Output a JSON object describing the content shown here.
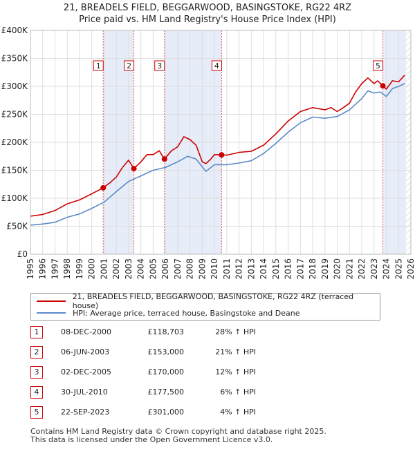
{
  "header": {
    "title_line1": "21, BREADELS FIELD, BEGGARWOOD, BASINGSTOKE, RG22 4RZ",
    "title_line2": "Price paid vs. HM Land Registry's House Price Index (HPI)"
  },
  "chart_data": {
    "type": "line",
    "title": "21, BREADELS FIELD, BEGGARWOOD, BASINGSTOKE, RG22 4RZ — Price paid vs. HM Land Registry's House Price Index (HPI)",
    "xlabel": "",
    "ylabel": "",
    "xlim": [
      1995,
      2026
    ],
    "ylim": [
      0,
      400000
    ],
    "y_ticks": [
      0,
      50000,
      100000,
      150000,
      200000,
      250000,
      300000,
      350000,
      400000
    ],
    "y_tick_labels": [
      "£0",
      "£50K",
      "£100K",
      "£150K",
      "£200K",
      "£250K",
      "£300K",
      "£350K",
      "£400K"
    ],
    "x_ticks": [
      "1995",
      "1996",
      "1997",
      "1998",
      "1999",
      "2000",
      "2001",
      "2002",
      "2003",
      "2004",
      "2005",
      "2006",
      "2007",
      "2008",
      "2009",
      "2010",
      "2011",
      "2012",
      "2013",
      "2014",
      "2015",
      "2016",
      "2017",
      "2018",
      "2019",
      "2020",
      "2021",
      "2022",
      "2023",
      "2024",
      "2025",
      "2026"
    ],
    "grid": true,
    "shaded_bands": [
      [
        2000.93,
        2003.43
      ],
      [
        2005.92,
        2010.58
      ],
      [
        2023.72,
        2025.6
      ]
    ],
    "hatched_region": [
      2025.6,
      2026
    ],
    "series": [
      {
        "name": "21, BREADELS FIELD, BEGGARWOOD, BASINGSTOKE, RG22 4RZ (terraced house)",
        "color": "#cc0000",
        "x": [
          1995,
          1996,
          1997,
          1998,
          1999,
          2000,
          2000.93,
          2001.5,
          2002,
          2002.5,
          2003,
          2003.43,
          2004,
          2004.5,
          2005,
          2005.5,
          2005.92,
          2006.5,
          2007,
          2007.5,
          2008,
          2008.5,
          2009,
          2009.3,
          2009.7,
          2010,
          2010.58,
          2011,
          2012,
          2013,
          2014,
          2015,
          2016,
          2017,
          2018,
          2019,
          2019.5,
          2020,
          2020.5,
          2021,
          2021.5,
          2022,
          2022.5,
          2023,
          2023.3,
          2023.72,
          2024,
          2024.5,
          2025,
          2025.5
        ],
        "y": [
          68000,
          71000,
          78000,
          90000,
          97000,
          108000,
          118703,
          128000,
          138000,
          155000,
          168000,
          153000,
          165000,
          178000,
          178000,
          185000,
          170000,
          185000,
          192000,
          210000,
          205000,
          195000,
          165000,
          162000,
          170000,
          178000,
          177500,
          177000,
          182000,
          184000,
          195000,
          215000,
          238000,
          255000,
          262000,
          258000,
          262000,
          255000,
          262000,
          270000,
          290000,
          305000,
          315000,
          305000,
          310000,
          301000,
          295000,
          310000,
          308000,
          320000
        ]
      },
      {
        "name": "HPI: Average price, terraced house, Basingstoke and Deane",
        "color": "#5b8ac8",
        "x": [
          1995,
          1996,
          1997,
          1998,
          1999,
          2000,
          2001,
          2002,
          2003,
          2004,
          2005,
          2006,
          2007,
          2007.8,
          2008.5,
          2009.3,
          2010,
          2011,
          2012,
          2013,
          2014,
          2015,
          2016,
          2017,
          2018,
          2019,
          2020,
          2021,
          2022,
          2022.5,
          2023,
          2023.5,
          2024,
          2024.5,
          2025,
          2025.5
        ],
        "y": [
          52000,
          54000,
          57000,
          66000,
          72000,
          82000,
          93000,
          112000,
          130000,
          140000,
          150000,
          155000,
          165000,
          175000,
          170000,
          148000,
          160000,
          160000,
          163000,
          167000,
          180000,
          198000,
          218000,
          235000,
          245000,
          243000,
          246000,
          258000,
          278000,
          292000,
          288000,
          290000,
          282000,
          296000,
          300000,
          305000
        ]
      }
    ],
    "sales": [
      {
        "marker": "1",
        "x": 2000.93,
        "y": 118703
      },
      {
        "marker": "2",
        "x": 2003.43,
        "y": 153000
      },
      {
        "marker": "3",
        "x": 2005.92,
        "y": 170000
      },
      {
        "marker": "4",
        "x": 2010.58,
        "y": 177500
      },
      {
        "marker": "5",
        "x": 2023.72,
        "y": 301000
      }
    ]
  },
  "legend": {
    "property_label": "21, BREADELS FIELD, BEGGARWOOD, BASINGSTOKE, RG22 4RZ (terraced house)",
    "hpi_label": "HPI: Average price, terraced house, Basingstoke and Deane",
    "property_color": "#cc0000",
    "hpi_color": "#5b8ac8"
  },
  "sales_table": [
    {
      "num": "1",
      "date": "08-DEC-2000",
      "price": "£118,703",
      "hpi": "28% ↑ HPI"
    },
    {
      "num": "2",
      "date": "06-JUN-2003",
      "price": "£153,000",
      "hpi": "21% ↑ HPI"
    },
    {
      "num": "3",
      "date": "02-DEC-2005",
      "price": "£170,000",
      "hpi": "12% ↑ HPI"
    },
    {
      "num": "4",
      "date": "30-JUL-2010",
      "price": "£177,500",
      "hpi": "6% ↑ HPI"
    },
    {
      "num": "5",
      "date": "22-SEP-2023",
      "price": "£301,000",
      "hpi": "4% ↑ HPI"
    }
  ],
  "footer": {
    "line1": "Contains HM Land Registry data © Crown copyright and database right 2025.",
    "line2": "This data is licensed under the Open Government Licence v3.0."
  }
}
